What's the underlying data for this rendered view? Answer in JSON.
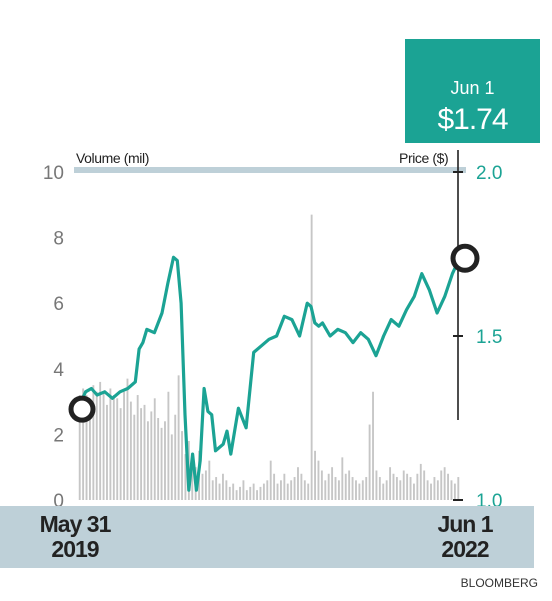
{
  "callout": {
    "date": "Jun 1",
    "price": "$1.74"
  },
  "source": "BLOOMBERG",
  "chart_data": {
    "type": "line",
    "title": "",
    "ylabel_left": "Volume (mil)",
    "ylabel_right": "Price ($)",
    "x_start": {
      "line1": "May 31",
      "line2": "2019"
    },
    "x_end": {
      "line1": "Jun 1",
      "line2": "2022"
    },
    "volume_axis": {
      "ylim": [
        0,
        10
      ],
      "ticks": [
        "0",
        "2",
        "4",
        "6",
        "8",
        "10"
      ]
    },
    "price_axis": {
      "ylim": [
        1.0,
        2.0
      ],
      "ticks": [
        "1.0",
        "1.5",
        "2.0"
      ]
    },
    "colors": {
      "price_line": "#1ba394",
      "volume_bars": "#c6c6c6",
      "text_price": "#1ba394",
      "axis_text": "#777777"
    },
    "price_series": {
      "name": "Price ($)",
      "t": [
        0,
        0.02,
        0.035,
        0.05,
        0.07,
        0.09,
        0.11,
        0.13,
        0.15,
        0.16,
        0.17,
        0.18,
        0.2,
        0.22,
        0.235,
        0.25,
        0.26,
        0.27,
        0.28,
        0.29,
        0.3,
        0.31,
        0.32,
        0.33,
        0.34,
        0.35,
        0.36,
        0.37,
        0.38,
        0.39,
        0.4,
        0.42,
        0.44,
        0.46,
        0.48,
        0.5,
        0.52,
        0.54,
        0.56,
        0.58,
        0.6,
        0.61,
        0.62,
        0.63,
        0.64,
        0.66,
        0.68,
        0.7,
        0.72,
        0.74,
        0.76,
        0.78,
        0.8,
        0.82,
        0.84,
        0.86,
        0.88,
        0.9,
        0.92,
        0.94,
        0.96,
        0.98,
        1.0
      ],
      "price": [
        1.28,
        1.33,
        1.34,
        1.32,
        1.33,
        1.31,
        1.33,
        1.34,
        1.36,
        1.46,
        1.48,
        1.52,
        1.51,
        1.57,
        1.66,
        1.74,
        1.73,
        1.6,
        1.26,
        1.03,
        1.14,
        1.03,
        1.12,
        1.34,
        1.27,
        1.26,
        1.15,
        1.16,
        1.17,
        1.21,
        1.14,
        1.28,
        1.22,
        1.45,
        1.47,
        1.49,
        1.5,
        1.56,
        1.55,
        1.5,
        1.6,
        1.59,
        1.54,
        1.53,
        1.54,
        1.5,
        1.52,
        1.51,
        1.48,
        1.51,
        1.49,
        1.44,
        1.5,
        1.55,
        1.53,
        1.58,
        1.62,
        1.69,
        1.64,
        1.57,
        1.62,
        1.69,
        1.74
      ]
    },
    "volume_series": {
      "name": "Volume (mil)",
      "values": [
        3.2,
        3.4,
        3.2,
        2.9,
        3.5,
        3.3,
        3.6,
        3.3,
        2.9,
        3.4,
        3.2,
        3.1,
        2.8,
        3.3,
        3.7,
        3.0,
        2.6,
        3.2,
        2.8,
        2.9,
        2.4,
        2.7,
        3.1,
        2.5,
        2.2,
        2.4,
        3.3,
        2.0,
        2.6,
        3.8,
        2.1,
        1.4,
        1.8,
        1.2,
        1.0,
        1.5,
        0.8,
        0.9,
        1.2,
        0.6,
        0.7,
        0.5,
        0.8,
        0.6,
        0.4,
        0.5,
        0.3,
        0.4,
        0.6,
        0.3,
        0.4,
        0.5,
        0.3,
        0.4,
        0.5,
        0.6,
        1.2,
        0.8,
        0.5,
        0.6,
        0.8,
        0.5,
        0.6,
        0.7,
        1.0,
        0.8,
        0.6,
        0.5,
        8.7,
        1.5,
        1.2,
        0.9,
        0.6,
        0.8,
        1.0,
        0.7,
        0.6,
        1.3,
        0.8,
        0.9,
        0.7,
        0.6,
        0.5,
        0.6,
        0.7,
        2.3,
        3.3,
        0.9,
        0.7,
        0.5,
        0.6,
        1.0,
        0.8,
        0.7,
        0.6,
        0.9,
        0.8,
        0.7,
        0.5,
        0.8,
        1.1,
        0.9,
        0.6,
        0.5,
        0.7,
        0.6,
        0.9,
        1.0,
        0.8,
        0.6,
        0.5,
        0.7
      ]
    }
  }
}
